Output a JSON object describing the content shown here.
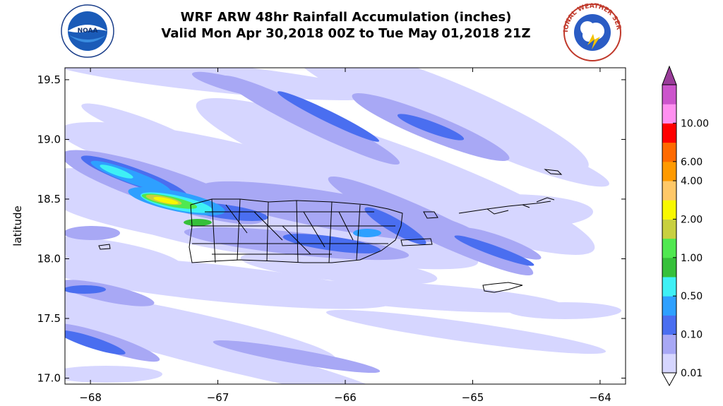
{
  "title": {
    "line1": "WRF ARW 48hr Rainfall Accumulation (inches)",
    "line2": "Valid Mon Apr 30,2018 00Z to Tue May 01,2018 21Z"
  },
  "logos": {
    "left": {
      "text": "NOAA",
      "icon": "noaa-logo-icon"
    },
    "right": {
      "text": "NATIONAL WEATHER SERVICE",
      "icon": "nws-logo-icon"
    }
  },
  "chart_data": {
    "type": "heatmap",
    "ylabel": "latitude",
    "xlabel": "",
    "x_ticks": [
      "−68",
      "−67",
      "−66",
      "−65",
      "−64"
    ],
    "x_tick_values": [
      -68,
      -67,
      -66,
      -65,
      -64
    ],
    "y_ticks": [
      "17.0",
      "17.5",
      "18.0",
      "18.5",
      "19.0",
      "19.5"
    ],
    "y_tick_values": [
      17.0,
      17.5,
      18.0,
      18.5,
      19.0,
      19.5
    ],
    "xlim": [
      -68.2,
      -63.8
    ],
    "ylim": [
      16.95,
      19.6
    ],
    "colorbar": {
      "labels": [
        "0.01",
        "0.10",
        "0.50",
        "1.00",
        "2.00",
        "4.00",
        "6.00",
        "10.00"
      ],
      "label_levels": [
        0,
        2,
        4,
        6,
        8,
        10,
        11,
        13
      ],
      "colors": [
        "#d6d6ff",
        "#a8a8f5",
        "#4a6ef0",
        "#2ea0ff",
        "#3ef0f5",
        "#36c03a",
        "#50e850",
        "#c8d040",
        "#f8f800",
        "#ffc868",
        "#ff9a00",
        "#ff6a00",
        "#ff0000",
        "#ff90f0",
        "#cc55cc"
      ],
      "over_color": "#9a3c9a"
    },
    "regions": [
      "Puerto Rico",
      "Virgin Islands",
      "St. Croix"
    ]
  }
}
